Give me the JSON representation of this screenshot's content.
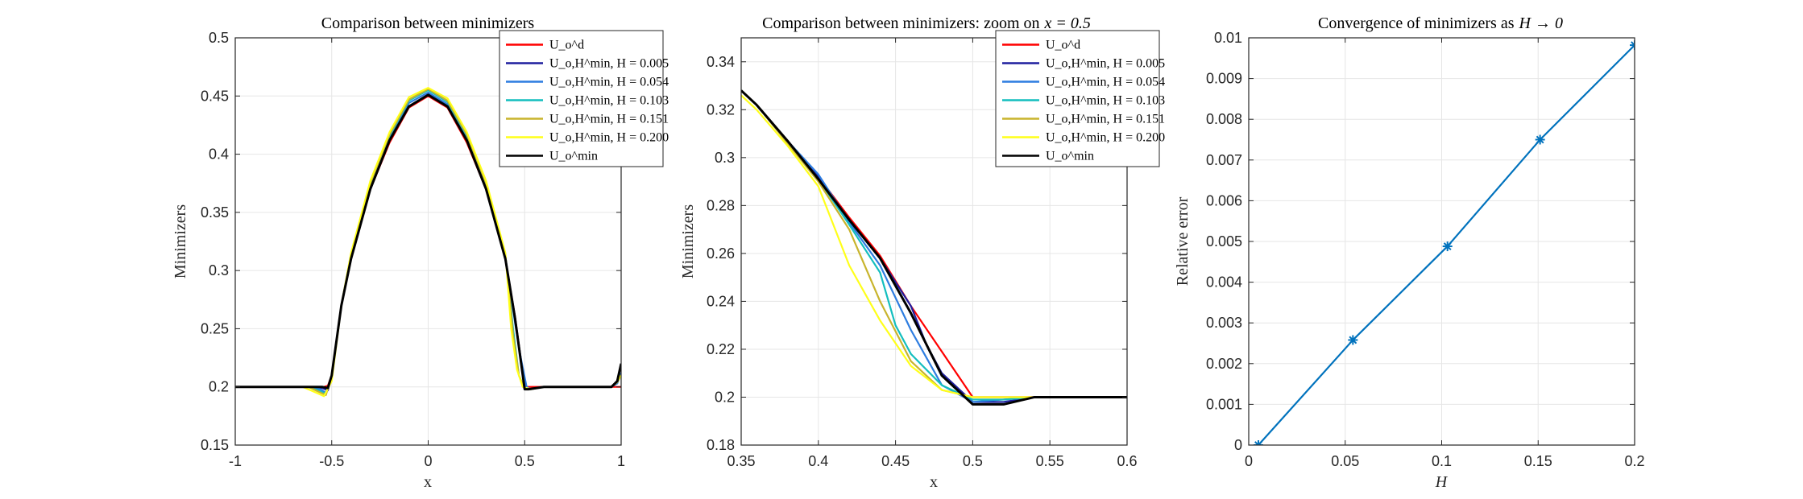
{
  "chart_data": [
    {
      "type": "line",
      "title": "Comparison between minimizers",
      "xlabel": "x",
      "ylabel": "Minimizers",
      "xlim": [
        -1,
        1
      ],
      "ylim": [
        0.15,
        0.5
      ],
      "xticks": [
        "-1",
        "-0.5",
        "0",
        "0.5",
        "1"
      ],
      "yticks": [
        "0.15",
        "0.2",
        "0.25",
        "0.3",
        "0.35",
        "0.4",
        "0.45",
        "0.5"
      ],
      "grid": true,
      "legend_position": "top-right",
      "series": [
        {
          "name": "U_o^d",
          "color": "#ff0000",
          "x": [
            -1,
            -0.6,
            -0.54,
            -0.52,
            -0.5,
            -0.45,
            -0.4,
            -0.3,
            -0.2,
            -0.1,
            0,
            0.1,
            0.2,
            0.3,
            0.4,
            0.45,
            0.5,
            0.6,
            1.0
          ],
          "y": [
            0.2,
            0.2,
            0.2,
            0.201,
            0.21,
            0.27,
            0.31,
            0.37,
            0.41,
            0.44,
            0.45,
            0.44,
            0.41,
            0.37,
            0.31,
            0.26,
            0.2,
            0.2,
            0.2
          ]
        },
        {
          "name": "U_o,H^min, H = 0.005",
          "color": "#1f1f9e",
          "x": [
            -1,
            -0.6,
            -0.55,
            -0.52,
            -0.5,
            -0.45,
            -0.4,
            -0.3,
            -0.2,
            -0.1,
            0,
            0.1,
            0.2,
            0.3,
            0.4,
            0.45,
            0.5,
            0.52,
            0.6,
            0.95,
            0.98,
            1.0
          ],
          "y": [
            0.2,
            0.2,
            0.199,
            0.197,
            0.21,
            0.27,
            0.31,
            0.37,
            0.412,
            0.441,
            0.451,
            0.441,
            0.412,
            0.37,
            0.31,
            0.26,
            0.2,
            0.198,
            0.2,
            0.2,
            0.205,
            0.22
          ]
        },
        {
          "name": "U_o,H^min, H = 0.054",
          "color": "#2e7de0",
          "x": [
            -1,
            -0.6,
            -0.56,
            -0.53,
            -0.5,
            -0.45,
            -0.4,
            -0.3,
            -0.2,
            -0.1,
            0,
            0.1,
            0.2,
            0.3,
            0.4,
            0.45,
            0.48,
            0.51,
            0.53,
            0.6,
            0.95,
            0.98,
            1.0
          ],
          "y": [
            0.2,
            0.2,
            0.198,
            0.195,
            0.21,
            0.27,
            0.312,
            0.372,
            0.414,
            0.444,
            0.453,
            0.443,
            0.414,
            0.372,
            0.312,
            0.255,
            0.225,
            0.2,
            0.198,
            0.2,
            0.2,
            0.203,
            0.212
          ]
        },
        {
          "name": "U_o,H^min, H = 0.103",
          "color": "#13bebe",
          "x": [
            -1,
            -0.62,
            -0.57,
            -0.53,
            -0.5,
            -0.45,
            -0.4,
            -0.3,
            -0.2,
            -0.1,
            0,
            0.1,
            0.2,
            0.3,
            0.4,
            0.44,
            0.47,
            0.5,
            0.53,
            0.6,
            0.95,
            0.98,
            1.0
          ],
          "y": [
            0.2,
            0.2,
            0.197,
            0.194,
            0.21,
            0.27,
            0.313,
            0.374,
            0.416,
            0.446,
            0.455,
            0.445,
            0.416,
            0.374,
            0.313,
            0.25,
            0.21,
            0.198,
            0.198,
            0.2,
            0.2,
            0.204,
            0.21
          ]
        },
        {
          "name": "U_o,H^min, H = 0.151",
          "color": "#c8b42d",
          "x": [
            -1,
            -0.62,
            -0.57,
            -0.53,
            -0.5,
            -0.45,
            -0.4,
            -0.3,
            -0.2,
            -0.1,
            0,
            0.1,
            0.2,
            0.3,
            0.4,
            0.44,
            0.47,
            0.5,
            0.53,
            0.6,
            0.95,
            0.98,
            1.0
          ],
          "y": [
            0.2,
            0.2,
            0.196,
            0.193,
            0.21,
            0.27,
            0.314,
            0.375,
            0.417,
            0.447,
            0.456,
            0.446,
            0.417,
            0.375,
            0.314,
            0.245,
            0.21,
            0.198,
            0.198,
            0.2,
            0.2,
            0.204,
            0.21
          ]
        },
        {
          "name": "U_o,H^min, H = 0.200",
          "color": "#ffff1a",
          "x": [
            -1,
            -0.65,
            -0.58,
            -0.54,
            -0.5,
            -0.45,
            -0.4,
            -0.3,
            -0.2,
            -0.1,
            0,
            0.1,
            0.2,
            0.3,
            0.4,
            0.43,
            0.46,
            0.49,
            0.53,
            0.6,
            0.95,
            0.98,
            1.0
          ],
          "y": [
            0.2,
            0.2,
            0.195,
            0.192,
            0.205,
            0.27,
            0.315,
            0.377,
            0.419,
            0.449,
            0.457,
            0.448,
            0.419,
            0.377,
            0.315,
            0.25,
            0.215,
            0.2,
            0.198,
            0.2,
            0.2,
            0.205,
            0.21
          ]
        },
        {
          "name": "U_o^min",
          "color": "#000000",
          "x": [
            -1,
            -0.6,
            -0.55,
            -0.52,
            -0.5,
            -0.45,
            -0.4,
            -0.3,
            -0.2,
            -0.1,
            0,
            0.1,
            0.2,
            0.3,
            0.4,
            0.45,
            0.5,
            0.52,
            0.6,
            0.95,
            0.98,
            1.0
          ],
          "y": [
            0.2,
            0.2,
            0.2,
            0.199,
            0.21,
            0.27,
            0.31,
            0.37,
            0.412,
            0.441,
            0.451,
            0.441,
            0.412,
            0.37,
            0.31,
            0.259,
            0.198,
            0.198,
            0.2,
            0.2,
            0.205,
            0.22
          ]
        }
      ]
    },
    {
      "type": "line",
      "title": "Comparison between minimizers: zoom on",
      "title_math": "x = 0.5",
      "xlabel": "x",
      "ylabel": "Minimizers",
      "xlim": [
        0.35,
        0.6
      ],
      "ylim": [
        0.18,
        0.35
      ],
      "xticks": [
        "0.35",
        "0.4",
        "0.45",
        "0.5",
        "0.55",
        "0.6"
      ],
      "yticks": [
        "0.18",
        "0.2",
        "0.22",
        "0.24",
        "0.26",
        "0.28",
        "0.3",
        "0.32",
        "0.34"
      ],
      "grid": true,
      "legend_position": "top-right",
      "series": [
        {
          "name": "U_o^d",
          "color": "#ff0000",
          "x": [
            0.35,
            0.36,
            0.38,
            0.4,
            0.42,
            0.44,
            0.46,
            0.48,
            0.5,
            0.52,
            0.54,
            0.56,
            0.58,
            0.6
          ],
          "y": [
            0.328,
            0.322,
            0.307,
            0.292,
            0.275,
            0.259,
            0.238,
            0.219,
            0.2,
            0.2,
            0.2,
            0.2,
            0.2,
            0.2
          ]
        },
        {
          "name": "U_o,H^min, H = 0.005",
          "color": "#1f1f9e",
          "x": [
            0.35,
            0.36,
            0.38,
            0.4,
            0.42,
            0.44,
            0.46,
            0.47,
            0.48,
            0.5,
            0.52,
            0.54,
            0.56,
            0.58,
            0.6
          ],
          "y": [
            0.328,
            0.322,
            0.307,
            0.292,
            0.274,
            0.258,
            0.238,
            0.222,
            0.21,
            0.198,
            0.198,
            0.2,
            0.2,
            0.2,
            0.2
          ]
        },
        {
          "name": "U_o,H^min, H = 0.054",
          "color": "#2e7de0",
          "x": [
            0.35,
            0.36,
            0.38,
            0.4,
            0.42,
            0.44,
            0.46,
            0.48,
            0.5,
            0.52,
            0.54,
            0.56,
            0.58,
            0.6
          ],
          "y": [
            0.328,
            0.322,
            0.307,
            0.293,
            0.273,
            0.255,
            0.228,
            0.205,
            0.198,
            0.199,
            0.2,
            0.2,
            0.2,
            0.2
          ]
        },
        {
          "name": "U_o,H^min, H = 0.103",
          "color": "#13bebe",
          "x": [
            0.35,
            0.36,
            0.38,
            0.4,
            0.42,
            0.44,
            0.45,
            0.46,
            0.48,
            0.5,
            0.52,
            0.54,
            0.56,
            0.58,
            0.6
          ],
          "y": [
            0.328,
            0.322,
            0.307,
            0.291,
            0.272,
            0.252,
            0.23,
            0.218,
            0.205,
            0.199,
            0.199,
            0.2,
            0.2,
            0.2,
            0.2
          ]
        },
        {
          "name": "U_o,H^min, H = 0.151",
          "color": "#c8b42d",
          "x": [
            0.35,
            0.36,
            0.38,
            0.4,
            0.42,
            0.44,
            0.46,
            0.48,
            0.5,
            0.52,
            0.54,
            0.56,
            0.58,
            0.6
          ],
          "y": [
            0.328,
            0.322,
            0.306,
            0.29,
            0.27,
            0.24,
            0.215,
            0.203,
            0.2,
            0.2,
            0.2,
            0.2,
            0.2,
            0.2
          ]
        },
        {
          "name": "U_o,H^min, H = 0.200",
          "color": "#ffff1a",
          "x": [
            0.35,
            0.36,
            0.38,
            0.4,
            0.42,
            0.44,
            0.46,
            0.48,
            0.5,
            0.52,
            0.54,
            0.56,
            0.58,
            0.6
          ],
          "y": [
            0.326,
            0.32,
            0.305,
            0.288,
            0.255,
            0.232,
            0.213,
            0.203,
            0.2,
            0.2,
            0.2,
            0.2,
            0.2,
            0.2
          ]
        },
        {
          "name": "U_o^min",
          "color": "#000000",
          "x": [
            0.35,
            0.36,
            0.38,
            0.4,
            0.42,
            0.44,
            0.46,
            0.48,
            0.5,
            0.52,
            0.54,
            0.56,
            0.58,
            0.6
          ],
          "y": [
            0.328,
            0.322,
            0.307,
            0.291,
            0.274,
            0.258,
            0.235,
            0.209,
            0.197,
            0.197,
            0.2,
            0.2,
            0.2,
            0.2
          ]
        }
      ]
    },
    {
      "type": "line",
      "title": "Convergence of minimizers as",
      "title_math": "H → 0",
      "xlabel": "H",
      "ylabel": "Relative error",
      "xlim": [
        0,
        0.2
      ],
      "ylim": [
        0,
        0.01
      ],
      "xticks": [
        "0",
        "0.05",
        "0.1",
        "0.15",
        "0.2"
      ],
      "yticks": [
        "0",
        "0.001",
        "0.002",
        "0.003",
        "0.004",
        "0.005",
        "0.006",
        "0.007",
        "0.008",
        "0.009",
        "0.01"
      ],
      "grid": true,
      "marker": "*",
      "series": [
        {
          "name": "Relative error",
          "color": "#0072bd",
          "x": [
            0.005,
            0.054,
            0.103,
            0.151,
            0.2
          ],
          "y": [
            0.0,
            0.00258,
            0.00488,
            0.0075,
            0.00982
          ]
        }
      ]
    }
  ]
}
